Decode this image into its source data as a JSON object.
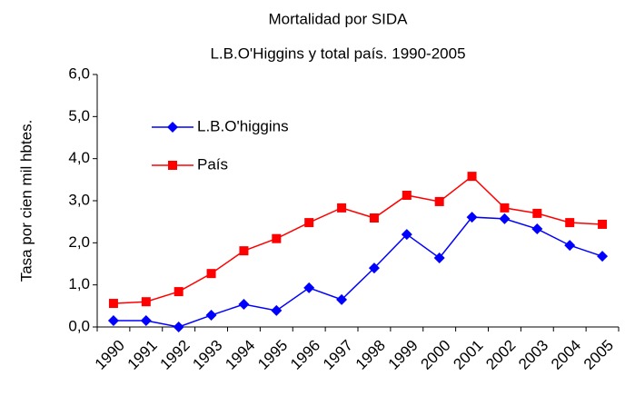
{
  "chart_data": {
    "type": "line",
    "title": "Mortalidad por SIDA",
    "subtitle": "L.B.O'Higgins y total país. 1990-2005",
    "y_label": "Tasa por cien mil hbtes.",
    "categories": [
      "1990",
      "1991",
      "1992",
      "1993",
      "1994",
      "1995",
      "1996",
      "1997",
      "1998",
      "1999",
      "2000",
      "2001",
      "2002",
      "2003",
      "2004",
      "2005"
    ],
    "series": [
      {
        "name": "L.B.O'higgins",
        "color": "#0000ff",
        "marker": "diamond",
        "values": [
          0.15,
          0.15,
          0.0,
          0.28,
          0.54,
          0.39,
          0.93,
          0.65,
          1.4,
          2.2,
          1.64,
          2.61,
          2.57,
          2.33,
          1.94,
          1.68
        ]
      },
      {
        "name": "País",
        "color": "#ff0000",
        "marker": "square",
        "values": [
          0.56,
          0.6,
          0.84,
          1.27,
          1.81,
          2.1,
          2.48,
          2.83,
          2.59,
          3.13,
          2.98,
          3.58,
          2.83,
          2.7,
          2.48,
          2.44
        ]
      }
    ],
    "ylim": [
      0,
      6
    ],
    "yticks": [
      {
        "value": 0,
        "label": "0,0"
      },
      {
        "value": 1,
        "label": "1,0"
      },
      {
        "value": 2,
        "label": "2,0"
      },
      {
        "value": 3,
        "label": "3,0"
      },
      {
        "value": 4,
        "label": "4,0"
      },
      {
        "value": 5,
        "label": "5,0"
      },
      {
        "value": 6,
        "label": "6,0"
      }
    ],
    "grid": false,
    "legend": "upper left"
  }
}
